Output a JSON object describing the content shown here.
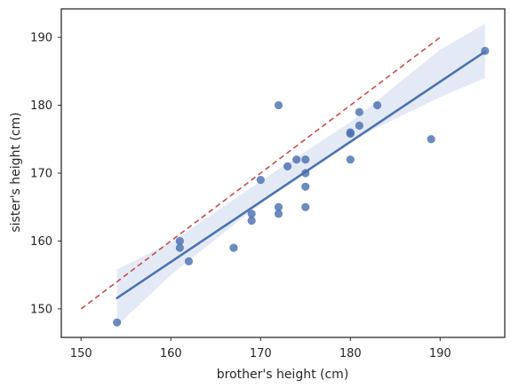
{
  "chart_data": {
    "type": "scatter",
    "title": "",
    "xlabel": "brother's height (cm)",
    "ylabel": "sister's height (cm)",
    "xlim": [
      147.8,
      197.2
    ],
    "ylim": [
      145.8,
      194.2
    ],
    "xticks": [
      150,
      160,
      170,
      180,
      190
    ],
    "yticks": [
      150,
      160,
      170,
      180,
      190
    ],
    "grid": false,
    "points": [
      {
        "x": 154,
        "y": 148
      },
      {
        "x": 161,
        "y": 160
      },
      {
        "x": 161,
        "y": 159
      },
      {
        "x": 162,
        "y": 157
      },
      {
        "x": 167,
        "y": 159
      },
      {
        "x": 169,
        "y": 164
      },
      {
        "x": 169,
        "y": 163
      },
      {
        "x": 170,
        "y": 169
      },
      {
        "x": 172,
        "y": 180
      },
      {
        "x": 172,
        "y": 165
      },
      {
        "x": 172,
        "y": 164
      },
      {
        "x": 173,
        "y": 171
      },
      {
        "x": 174,
        "y": 172
      },
      {
        "x": 175,
        "y": 172
      },
      {
        "x": 175,
        "y": 170
      },
      {
        "x": 175,
        "y": 168
      },
      {
        "x": 175,
        "y": 165
      },
      {
        "x": 180,
        "y": 176
      },
      {
        "x": 180,
        "y": 175.8
      },
      {
        "x": 180,
        "y": 172
      },
      {
        "x": 181,
        "y": 179
      },
      {
        "x": 181,
        "y": 177
      },
      {
        "x": 183,
        "y": 180
      },
      {
        "x": 189,
        "y": 175
      },
      {
        "x": 195,
        "y": 188
      }
    ],
    "regression_line": {
      "x": [
        154,
        195
      ],
      "y": [
        151.6,
        187.9
      ]
    },
    "confidence_band": {
      "x": [
        154,
        160,
        170,
        175,
        180,
        190,
        195
      ],
      "lower": [
        147.5,
        155.0,
        165.5,
        170.4,
        174.8,
        181.2,
        184.0
      ],
      "upper": [
        155.8,
        159.8,
        168.8,
        173.2,
        177.5,
        188.2,
        192.0
      ]
    },
    "reference_line": {
      "x": [
        150,
        190
      ],
      "y": [
        150,
        190
      ],
      "style": "dashed"
    },
    "colors": {
      "points": "#4c72b0",
      "regression": "#4c72b0",
      "band": "#dbe3f1",
      "reference": "#c44e52",
      "axes": "#262626"
    }
  }
}
